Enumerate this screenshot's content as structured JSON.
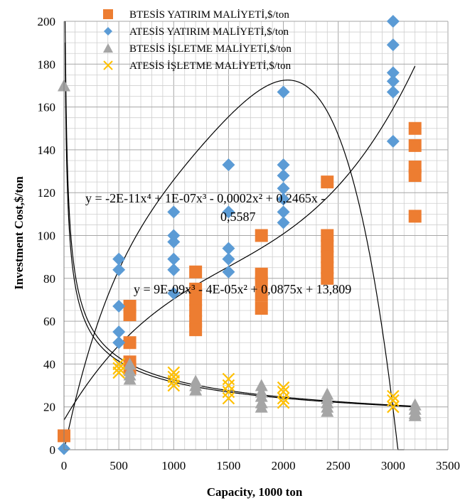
{
  "chart_data": {
    "type": "scatter",
    "xlabel": "Capacity, 1000 ton",
    "ylabel": "Investment Cost,$/ton",
    "xlim": [
      0,
      3500
    ],
    "ylim": [
      0,
      200
    ],
    "x_ticks": [
      "0",
      "500",
      "1000",
      "1500",
      "2000",
      "2500",
      "3000",
      "3500"
    ],
    "y_ticks": [
      "0",
      "20",
      "40",
      "60",
      "80",
      "100",
      "120",
      "140",
      "160",
      "180",
      "200"
    ],
    "grid": true,
    "legend_position": "top",
    "series": [
      {
        "name": "BTESİS YATIRIM MALİYETİ,$/ton",
        "marker": "square",
        "color": "#ED7D31",
        "points": [
          [
            0,
            6.5
          ],
          [
            600,
            63
          ],
          [
            600,
            67
          ],
          [
            600,
            50
          ],
          [
            600,
            41
          ],
          [
            600,
            38
          ],
          [
            1200,
            83
          ],
          [
            1200,
            75
          ],
          [
            1200,
            70
          ],
          [
            1200,
            65
          ],
          [
            1200,
            60
          ],
          [
            1200,
            56
          ],
          [
            1800,
            100
          ],
          [
            1800,
            82
          ],
          [
            1800,
            78
          ],
          [
            1800,
            72
          ],
          [
            1800,
            66
          ],
          [
            2400,
            125
          ],
          [
            2400,
            100
          ],
          [
            2400,
            95
          ],
          [
            2400,
            90
          ],
          [
            2400,
            85
          ],
          [
            2400,
            80
          ],
          [
            3200,
            150
          ],
          [
            3200,
            142
          ],
          [
            3200,
            132
          ],
          [
            3200,
            128
          ],
          [
            3200,
            109
          ]
        ]
      },
      {
        "name": "ATESİS YATIRIM MALİYETİ,$/ton",
        "marker": "diamond",
        "color": "#5B9BD5",
        "points": [
          [
            0,
            0.5
          ],
          [
            500,
            89
          ],
          [
            500,
            84
          ],
          [
            500,
            67
          ],
          [
            500,
            55
          ],
          [
            500,
            50
          ],
          [
            1000,
            111
          ],
          [
            1000,
            100
          ],
          [
            1000,
            97
          ],
          [
            1000,
            89
          ],
          [
            1000,
            84
          ],
          [
            1000,
            73
          ],
          [
            1500,
            133
          ],
          [
            1500,
            111
          ],
          [
            1500,
            94
          ],
          [
            1500,
            89
          ],
          [
            1500,
            83
          ],
          [
            2000,
            167
          ],
          [
            2000,
            133
          ],
          [
            2000,
            128
          ],
          [
            2000,
            122
          ],
          [
            2000,
            117
          ],
          [
            2000,
            111
          ],
          [
            2000,
            106
          ],
          [
            3000,
            200
          ],
          [
            3000,
            189
          ],
          [
            3000,
            176
          ],
          [
            3000,
            172
          ],
          [
            3000,
            167
          ],
          [
            3000,
            144
          ]
        ]
      },
      {
        "name": "BTESİS İŞLETME MALİYETİ,$/ton",
        "marker": "triangle",
        "color": "#A5A5A5",
        "points": [
          [
            0,
            170
          ],
          [
            600,
            40
          ],
          [
            600,
            37
          ],
          [
            600,
            35
          ],
          [
            600,
            33
          ],
          [
            1200,
            32
          ],
          [
            1200,
            30
          ],
          [
            1200,
            28
          ],
          [
            1800,
            30
          ],
          [
            1800,
            27
          ],
          [
            1800,
            25
          ],
          [
            1800,
            22
          ],
          [
            1800,
            20
          ],
          [
            2400,
            26
          ],
          [
            2400,
            24
          ],
          [
            2400,
            22
          ],
          [
            2400,
            20
          ],
          [
            2400,
            18
          ],
          [
            3200,
            21
          ],
          [
            3200,
            19
          ],
          [
            3200,
            17
          ],
          [
            3200,
            16
          ]
        ]
      },
      {
        "name": "ATESİS İŞLETME MALİYETİ,$/ton",
        "marker": "x",
        "color": "#FFC000",
        "points": [
          [
            500,
            40
          ],
          [
            500,
            38
          ],
          [
            500,
            36
          ],
          [
            1000,
            36
          ],
          [
            1000,
            34
          ],
          [
            1000,
            32
          ],
          [
            1000,
            30
          ],
          [
            1500,
            33
          ],
          [
            1500,
            30
          ],
          [
            1500,
            27
          ],
          [
            1500,
            24
          ],
          [
            2000,
            29
          ],
          [
            2000,
            27
          ],
          [
            2000,
            24
          ],
          [
            2000,
            22
          ],
          [
            3000,
            25
          ],
          [
            3000,
            23
          ],
          [
            3000,
            20
          ]
        ]
      }
    ],
    "annotations": [
      "y = -2E-11x⁴ + 1E-07x³ - 0,0002x² + 0,2465x -",
      "0,5587",
      "y = 9E-09x³ - 4E-05x² + 0,0875x + 13,809"
    ]
  }
}
